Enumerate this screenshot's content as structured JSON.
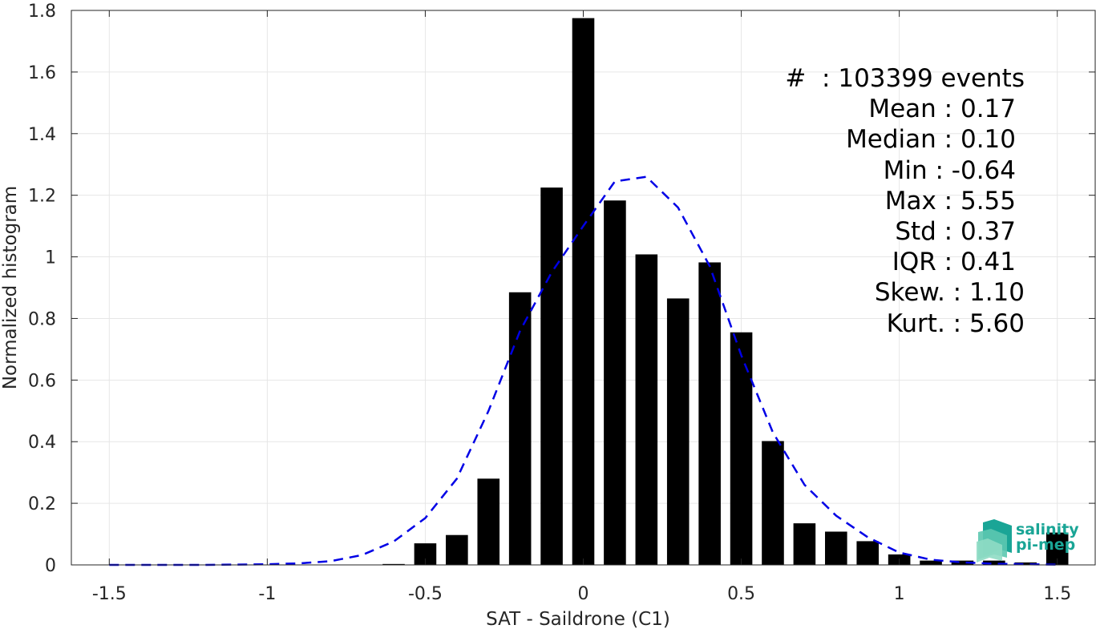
{
  "chart_data": {
    "type": "bar",
    "xlabel": "SAT - Saildrone (C1)",
    "ylabel": "Normalized histogram",
    "xlim": [
      -1.62,
      1.62
    ],
    "ylim": [
      0,
      1.8
    ],
    "xticks": [
      -1.5,
      -1,
      -0.5,
      0,
      0.5,
      1,
      1.5
    ],
    "xtick_labels": [
      "-1.5",
      "-1",
      "-0.5",
      "0",
      "0.5",
      "1",
      "1.5"
    ],
    "yticks": [
      0,
      0.2,
      0.4,
      0.6,
      0.8,
      1,
      1.2,
      1.4,
      1.6,
      1.8
    ],
    "ytick_labels": [
      "0",
      "0.2",
      "0.4",
      "0.6",
      "0.8",
      "1",
      "1.2",
      "1.4",
      "1.6",
      "1.8"
    ],
    "grid": true,
    "bar_color": "#000000",
    "bar_width": 0.07,
    "bars": {
      "x": [
        -0.6,
        -0.5,
        -0.4,
        -0.3,
        -0.2,
        -0.1,
        0.0,
        0.1,
        0.2,
        0.3,
        0.4,
        0.5,
        0.6,
        0.7,
        0.8,
        0.9,
        1.0,
        1.1,
        1.2,
        1.3,
        1.4,
        1.5
      ],
      "y": [
        0.003,
        0.07,
        0.097,
        0.28,
        0.885,
        1.225,
        1.775,
        1.183,
        1.008,
        0.865,
        0.982,
        0.755,
        0.402,
        0.135,
        0.108,
        0.077,
        0.034,
        0.014,
        0.014,
        0.014,
        0.008,
        0.105
      ]
    },
    "series": [
      {
        "style": "dashed",
        "color": "#0000e6",
        "x": [
          -1.5,
          -1.4,
          -1.3,
          -1.2,
          -1.1,
          -1.0,
          -0.9,
          -0.8,
          -0.7,
          -0.6,
          -0.5,
          -0.4,
          -0.3,
          -0.2,
          -0.1,
          0.0,
          0.1,
          0.2,
          0.3,
          0.4,
          0.5,
          0.6,
          0.7,
          0.8,
          0.9,
          1.0,
          1.1,
          1.2,
          1.3,
          1.4,
          1.5
        ],
        "y": [
          0.0,
          0.0,
          0.0,
          0.0,
          0.001,
          0.002,
          0.005,
          0.012,
          0.032,
          0.076,
          0.152,
          0.28,
          0.5,
          0.76,
          0.95,
          1.1,
          1.245,
          1.26,
          1.16,
          0.97,
          0.68,
          0.43,
          0.26,
          0.16,
          0.09,
          0.04,
          0.017,
          0.008,
          0.004,
          0.002,
          0.001
        ]
      }
    ],
    "annotations": [
      "#  : 103399 events",
      "Mean : 0.17",
      "Median : 0.10",
      "Min : -0.64",
      "Max : 5.55",
      "Std : 0.37",
      "IQR : 0.41",
      "Skew. : 1.10",
      "Kurt. : 5.60"
    ]
  },
  "logo": {
    "line1": "salinity",
    "line2": "pi-mep",
    "colors": [
      "#1aa596",
      "#5cc8b0",
      "#8fdcc4"
    ]
  }
}
